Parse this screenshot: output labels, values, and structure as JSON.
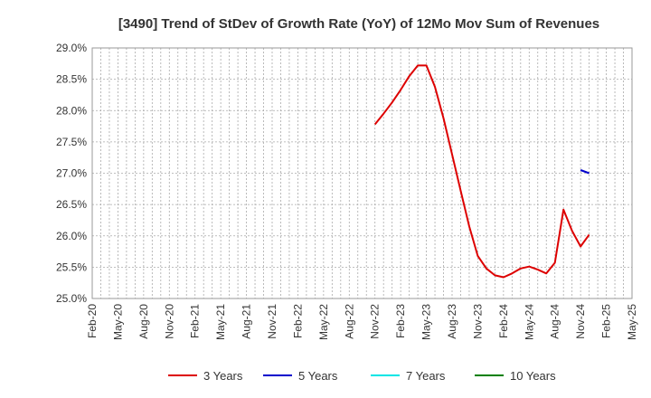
{
  "chart_data": {
    "type": "line",
    "title": "[3490]  Trend of StDev of Growth Rate (YoY) of 12Mo Mov Sum of Revenues",
    "xlabel": "",
    "ylabel": "",
    "ylim": [
      25.0,
      29.0
    ],
    "y_ticks": [
      "25.0%",
      "25.5%",
      "26.0%",
      "26.5%",
      "27.0%",
      "27.5%",
      "28.0%",
      "28.5%",
      "29.0%"
    ],
    "x_ticks": [
      "Feb-20",
      "May-20",
      "Aug-20",
      "Nov-20",
      "Feb-21",
      "May-21",
      "Aug-21",
      "Nov-21",
      "Feb-22",
      "May-22",
      "Aug-22",
      "Nov-22",
      "Feb-23",
      "May-23",
      "Aug-23",
      "Nov-23",
      "Feb-24",
      "May-24",
      "Aug-24",
      "Nov-24",
      "Feb-25",
      "May-25"
    ],
    "x_range_months": [
      0,
      63
    ],
    "grid": true,
    "legend_position": "bottom",
    "series": [
      {
        "name": "3 Years",
        "color": "#dd0000",
        "points": [
          [
            33,
            27.78
          ],
          [
            34,
            27.95
          ],
          [
            35,
            28.13
          ],
          [
            36,
            28.33
          ],
          [
            37,
            28.55
          ],
          [
            38,
            28.72
          ],
          [
            39,
            28.72
          ],
          [
            40,
            28.38
          ],
          [
            41,
            27.88
          ],
          [
            42,
            27.3
          ],
          [
            43,
            26.72
          ],
          [
            44,
            26.15
          ],
          [
            45,
            25.68
          ],
          [
            46,
            25.48
          ],
          [
            47,
            25.37
          ],
          [
            48,
            25.34
          ],
          [
            49,
            25.4
          ],
          [
            50,
            25.48
          ],
          [
            51,
            25.51
          ],
          [
            52,
            25.46
          ],
          [
            53,
            25.4
          ],
          [
            54,
            25.57
          ],
          [
            55,
            26.42
          ],
          [
            56,
            26.08
          ],
          [
            57,
            25.83
          ],
          [
            58,
            26.02
          ]
        ]
      },
      {
        "name": "5 Years",
        "color": "#0000cc",
        "points": [
          [
            57,
            27.05
          ],
          [
            58,
            27.0
          ]
        ]
      },
      {
        "name": "7 Years",
        "color": "#00e5e5",
        "points": []
      },
      {
        "name": "10 Years",
        "color": "#008000",
        "points": []
      }
    ]
  }
}
